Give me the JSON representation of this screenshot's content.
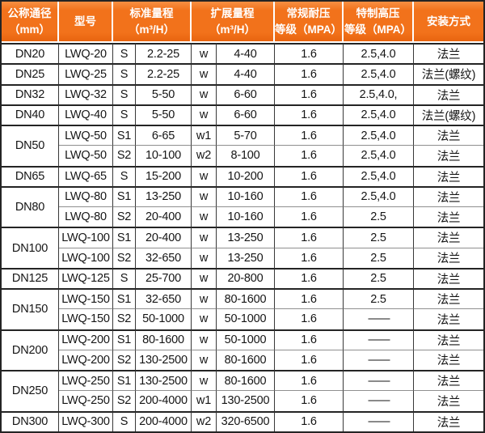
{
  "colors": {
    "header_bg": "#f2721b",
    "header_text": "#ffffff",
    "grid_strong": "#242424",
    "grid_light": "#8f8f8f",
    "body_text": "#151515"
  },
  "table": {
    "header": {
      "col_dn": "公称通径\n（mm）",
      "col_model": "型号",
      "col_std": "标准量程\n（m³/H）",
      "col_ext": "扩展量程\n（m³/H）",
      "col_normal": "常规耐压\n等级（MPA）",
      "col_high": "特制高压\n等级（MPA）",
      "col_install": "安装方式"
    },
    "groups": [
      {
        "dn": "DN20",
        "rows": [
          {
            "model": "LWQ-20",
            "s": "S",
            "std": "2.2-25",
            "w": "w",
            "ext": "4-40",
            "pn": "1.6",
            "ph": "2.5,4.0",
            "install": "法兰"
          }
        ]
      },
      {
        "dn": "DN25",
        "rows": [
          {
            "model": "LWQ-25",
            "s": "S",
            "std": "2.2-25",
            "w": "w",
            "ext": "4-40",
            "pn": "1.6",
            "ph": "2.5,4.0",
            "install": "法兰(螺纹)"
          }
        ]
      },
      {
        "dn": "DN32",
        "rows": [
          {
            "model": "LWQ-32",
            "s": "S",
            "std": "5-50",
            "w": "w",
            "ext": "6-60",
            "pn": "1.6",
            "ph": "2.5,4.0,",
            "install": "法兰"
          }
        ]
      },
      {
        "dn": "DN40",
        "rows": [
          {
            "model": "LWQ-40",
            "s": "S",
            "std": "5-50",
            "w": "w",
            "ext": "6-60",
            "pn": "1.6",
            "ph": "2.5,4.0",
            "install": "法兰(螺纹)"
          }
        ]
      },
      {
        "dn": "DN50",
        "rows": [
          {
            "model": "LWQ-50",
            "s": "S1",
            "std": "6-65",
            "w": "w1",
            "ext": "5-70",
            "pn": "1.6",
            "ph": "2.5,4.0",
            "install": "法兰"
          },
          {
            "model": "LWQ-50",
            "s": "S2",
            "std": "10-100",
            "w": "w2",
            "ext": "8-100",
            "pn": "1.6",
            "ph": "2.5,4.0",
            "install": "法兰"
          }
        ]
      },
      {
        "dn": "DN65",
        "rows": [
          {
            "model": "LWQ-65",
            "s": "S",
            "std": "15-200",
            "w": "w",
            "ext": "10-200",
            "pn": "1.6",
            "ph": "2.5,4.0",
            "install": "法兰"
          }
        ]
      },
      {
        "dn": "DN80",
        "rows": [
          {
            "model": "LWQ-80",
            "s": "S1",
            "std": "13-250",
            "w": "w",
            "ext": "10-160",
            "pn": "1.6",
            "ph": "2.5,4.0",
            "install": "法兰"
          },
          {
            "model": "LWQ-80",
            "s": "S2",
            "std": "20-400",
            "w": "w",
            "ext": "10-160",
            "pn": "1.6",
            "ph": "2.5",
            "install": "法兰"
          }
        ]
      },
      {
        "dn": "DN100",
        "rows": [
          {
            "model": "LWQ-100",
            "s": "S1",
            "std": "20-400",
            "w": "w",
            "ext": "13-250",
            "pn": "1.6",
            "ph": "2.5",
            "install": "法兰"
          },
          {
            "model": "LWQ-100",
            "s": "S2",
            "std": "32-650",
            "w": "w",
            "ext": "13-250",
            "pn": "1.6",
            "ph": "2.5",
            "install": "法兰"
          }
        ]
      },
      {
        "dn": "DN125",
        "rows": [
          {
            "model": "LWQ-125",
            "s": "S",
            "std": "25-700",
            "w": "w",
            "ext": "20-800",
            "pn": "1.6",
            "ph": "2.5",
            "install": "法兰"
          }
        ]
      },
      {
        "dn": "DN150",
        "rows": [
          {
            "model": "LWQ-150",
            "s": "S1",
            "std": "32-650",
            "w": "w",
            "ext": "80-1600",
            "pn": "1.6",
            "ph": "2.5",
            "install": "法兰"
          },
          {
            "model": "LWQ-150",
            "s": "S2",
            "std": "50-1000",
            "w": "w",
            "ext": "50-1000",
            "pn": "1.6",
            "ph": "——",
            "install": "法兰"
          }
        ]
      },
      {
        "dn": "DN200",
        "rows": [
          {
            "model": "LWQ-200",
            "s": "S1",
            "std": "80-1600",
            "w": "w",
            "ext": "50-1000",
            "pn": "1.6",
            "ph": "——",
            "install": "法兰"
          },
          {
            "model": "LWQ-200",
            "s": "S2",
            "std": "130-2500",
            "w": "w",
            "ext": "80-1600",
            "pn": "1.6",
            "ph": "——",
            "install": "法兰"
          }
        ]
      },
      {
        "dn": "DN250",
        "rows": [
          {
            "model": "LWQ-250",
            "s": "S1",
            "std": "130-2500",
            "w": "w",
            "ext": "80-1600",
            "pn": "1.6",
            "ph": "——",
            "install": "法兰"
          },
          {
            "model": "LWQ-250",
            "s": "S2",
            "std": "200-4000",
            "w": "w1",
            "ext": "130-2500",
            "pn": "1.6",
            "ph": "——",
            "install": "法兰"
          }
        ]
      },
      {
        "dn": "DN300",
        "rows": [
          {
            "model": "LWQ-300",
            "s": "S",
            "std": "200-4000",
            "w": "w2",
            "ext": "320-6500",
            "pn": "1.6",
            "ph": "——",
            "install": "法兰"
          }
        ]
      }
    ]
  }
}
